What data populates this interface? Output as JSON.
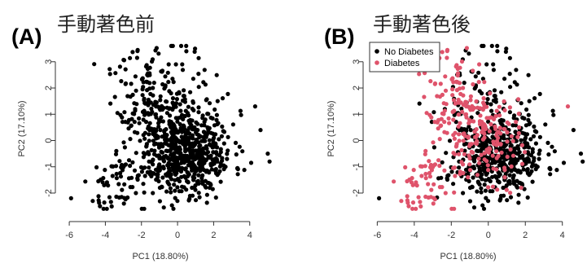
{
  "chart_data": [
    {
      "type": "scatter",
      "panel_label": "(A)",
      "title": "手動著色前",
      "xlabel": "PC1 (18.80%)",
      "ylabel": "PC2 (17.10%)",
      "xlim": [
        -6.5,
        5.5
      ],
      "ylim": [
        -2.9,
        3.8
      ],
      "xticks": [
        -6,
        -4,
        -2,
        0,
        2,
        4
      ],
      "yticks": [
        -2,
        -1,
        0,
        1,
        2,
        3
      ],
      "series": [
        {
          "color": "#000000",
          "points": []
        }
      ]
    },
    {
      "type": "scatter",
      "panel_label": "(B)",
      "title": "手動著色後",
      "xlabel": "PC1 (18.80%)",
      "ylabel": "PC2 (17.10%)",
      "xlim": [
        -6.5,
        5.2
      ],
      "ylim": [
        -2.9,
        3.8
      ],
      "xticks": [
        -6,
        -4,
        -2,
        0,
        2,
        4
      ],
      "yticks": [
        -2,
        -1,
        0,
        1,
        2,
        3
      ],
      "legend": {
        "position": "top-left",
        "entries": [
          "No Diabetes",
          "Diabetes"
        ]
      },
      "series": [
        {
          "name": "No Diabetes",
          "color": "#000000",
          "points": []
        },
        {
          "name": "Diabetes",
          "color": "#DF536B",
          "points": []
        }
      ]
    }
  ]
}
